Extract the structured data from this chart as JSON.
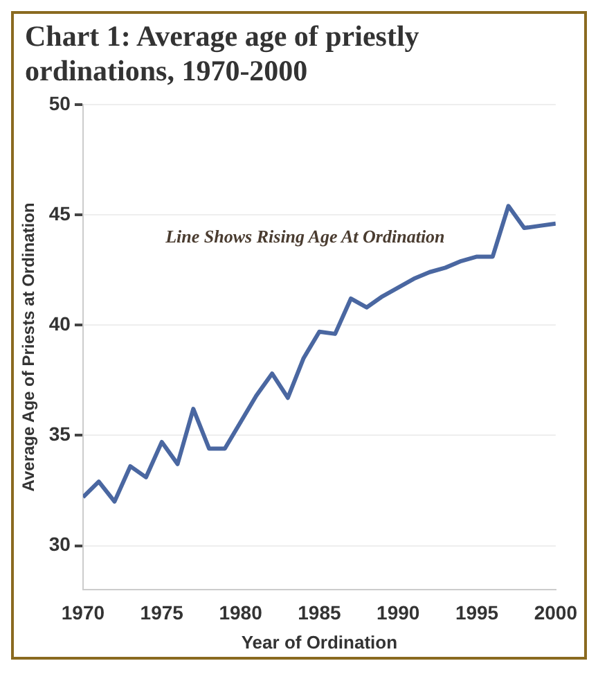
{
  "chart_data": {
    "type": "line",
    "title": "Chart 1: Average age of priestly ordinations, 1970-2000",
    "xlabel": "Year of Ordination",
    "ylabel": "Average Age of Priests at Ordination",
    "x": [
      1970,
      1971,
      1972,
      1973,
      1974,
      1975,
      1976,
      1977,
      1978,
      1979,
      1980,
      1981,
      1982,
      1983,
      1984,
      1985,
      1986,
      1987,
      1988,
      1989,
      1990,
      1991,
      1992,
      1993,
      1994,
      1995,
      1996,
      1997,
      1998,
      1999,
      2000
    ],
    "series": [
      {
        "color": "#4a67a1",
        "values": [
          32.2,
          32.9,
          32.0,
          33.6,
          33.1,
          34.7,
          33.7,
          36.2,
          34.4,
          34.4,
          35.6,
          36.8,
          37.8,
          36.7,
          38.5,
          39.7,
          39.6,
          41.2,
          40.8,
          41.3,
          41.7,
          42.1,
          42.4,
          42.6,
          42.9,
          43.1,
          43.1,
          45.4,
          44.4,
          44.5,
          44.6
        ]
      }
    ],
    "xlim": [
      1970,
      2000
    ],
    "xticks": [
      1970,
      1975,
      1980,
      1985,
      1990,
      1995,
      2000
    ],
    "ylim": [
      28,
      50
    ],
    "yticks": [
      30,
      35,
      40,
      45,
      50
    ],
    "annotations": [
      "Line Shows Rising Age At Ordination"
    ],
    "grid": "y",
    "legend": false,
    "marker": "none",
    "line_style": "solid"
  }
}
